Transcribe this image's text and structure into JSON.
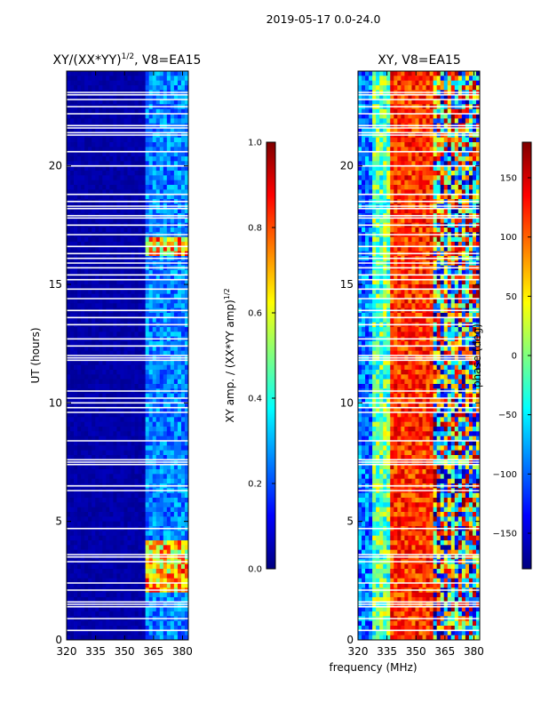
{
  "figure": {
    "suptitle": "2019-05-17 0.0-24.0",
    "shared_xlabel": "frequency (MHz)"
  },
  "colors": {
    "jet": [
      "#00007f",
      "#0000ff",
      "#007fff",
      "#00ffff",
      "#7fff7f",
      "#ffff00",
      "#ff7f00",
      "#ff0000",
      "#7f0000"
    ],
    "axis": "#000000",
    "gap": "#ffffff"
  },
  "chart_data": [
    {
      "type": "heatmap",
      "id": "amp",
      "title_main": "XY/(XX*YY)",
      "title_sup": "1/2",
      "title_rest": ", V8=EA15",
      "xlabel": "",
      "ylabel": "UT (hours)",
      "xlim": [
        320,
        383
      ],
      "ylim": [
        0,
        24
      ],
      "xticks": [
        320,
        335,
        350,
        365,
        380
      ],
      "yticks": [
        0,
        5,
        10,
        15,
        20
      ],
      "colorbar": {
        "label_main": "XY amp. / (XX*YY amp)",
        "label_sup": "1/2",
        "range": [
          0.0,
          1.0
        ],
        "ticks": [
          0.0,
          0.2,
          0.4,
          0.6,
          0.8,
          1.0
        ],
        "tick_labels": [
          "0.0",
          "0.2",
          "0.4",
          "0.6",
          "0.8",
          "1.0"
        ]
      }
    },
    {
      "type": "heatmap",
      "id": "phase",
      "title_main": "XY, V8=EA15",
      "title_sup": "",
      "title_rest": "",
      "xlabel": "frequency (MHz)",
      "ylabel": "",
      "xlim": [
        320,
        383
      ],
      "ylim": [
        0,
        24
      ],
      "xticks": [
        320,
        335,
        350,
        365,
        380
      ],
      "yticks": [
        0,
        5,
        10,
        15,
        20
      ],
      "colorbar": {
        "label_main": "phase (deg)",
        "label_sup": "",
        "range": [
          -180,
          180
        ],
        "ticks": [
          -150,
          -100,
          -50,
          0,
          50,
          100,
          150
        ],
        "tick_labels": [
          "−150",
          "−100",
          "−50",
          "0",
          "50",
          "100",
          "150"
        ]
      }
    }
  ],
  "gaps_hours": [
    0.4,
    0.9,
    1.4,
    1.5,
    1.6,
    2.1,
    2.4,
    3.3,
    3.5,
    3.6,
    4.7,
    6.3,
    6.5,
    7.4,
    7.5,
    7.6,
    8.4,
    9.6,
    9.8,
    10.0,
    10.2,
    10.5,
    11.8,
    11.9,
    12.0,
    12.4,
    12.7,
    13.3,
    13.6,
    13.9,
    14.4,
    14.8,
    15.2,
    15.4,
    15.7,
    15.9,
    16.1,
    16.3,
    16.6,
    17.1,
    17.5,
    17.8,
    17.9,
    18.2,
    18.3,
    18.5,
    18.8,
    20.0,
    20.6,
    21.3,
    21.4,
    21.6,
    21.7,
    22.2,
    22.5,
    22.8,
    23.0,
    23.1
  ]
}
